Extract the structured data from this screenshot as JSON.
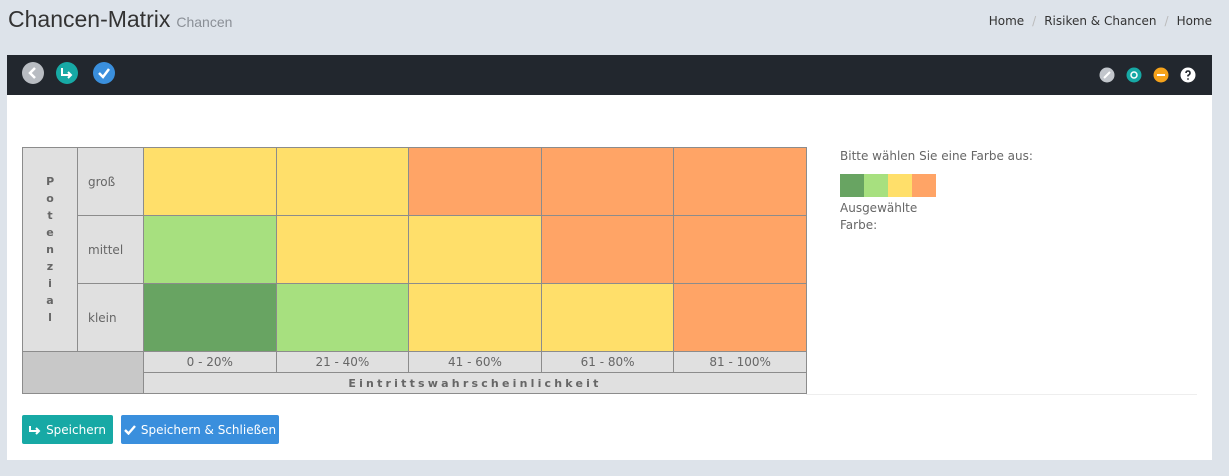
{
  "header": {
    "title": "Chancen-Matrix",
    "subtitle": "Chancen",
    "breadcrumbs": [
      "Home",
      "Risiken & Chancen",
      "Home"
    ]
  },
  "matrix": {
    "y_label": "Potenzial",
    "rows": [
      "groß",
      "mittel",
      "klein"
    ],
    "columns": [
      "0 - 20%",
      "21 - 40%",
      "41 - 60%",
      "61 - 80%",
      "81 - 100%"
    ],
    "x_label": "Eintrittswahrscheinlichkeit",
    "cell_colors": [
      [
        "#ffdf6a",
        "#ffdf6a",
        "#ffa466",
        "#ffa466",
        "#ffa466"
      ],
      [
        "#a7e07f",
        "#ffdf6a",
        "#ffdf6a",
        "#ffa466",
        "#ffa466"
      ],
      [
        "#68a462",
        "#a7e07f",
        "#ffdf6a",
        "#ffdf6a",
        "#ffa466"
      ]
    ]
  },
  "palette": {
    "prompt": "Bitte wählen Sie eine Farbe aus:",
    "colors": [
      "#68a462",
      "#a7e07f",
      "#ffdf6a",
      "#ffa466"
    ],
    "selected_label": "Ausgewählte Farbe:"
  },
  "buttons": {
    "save": "Speichern",
    "save_close": "Speichern & Schließen"
  }
}
